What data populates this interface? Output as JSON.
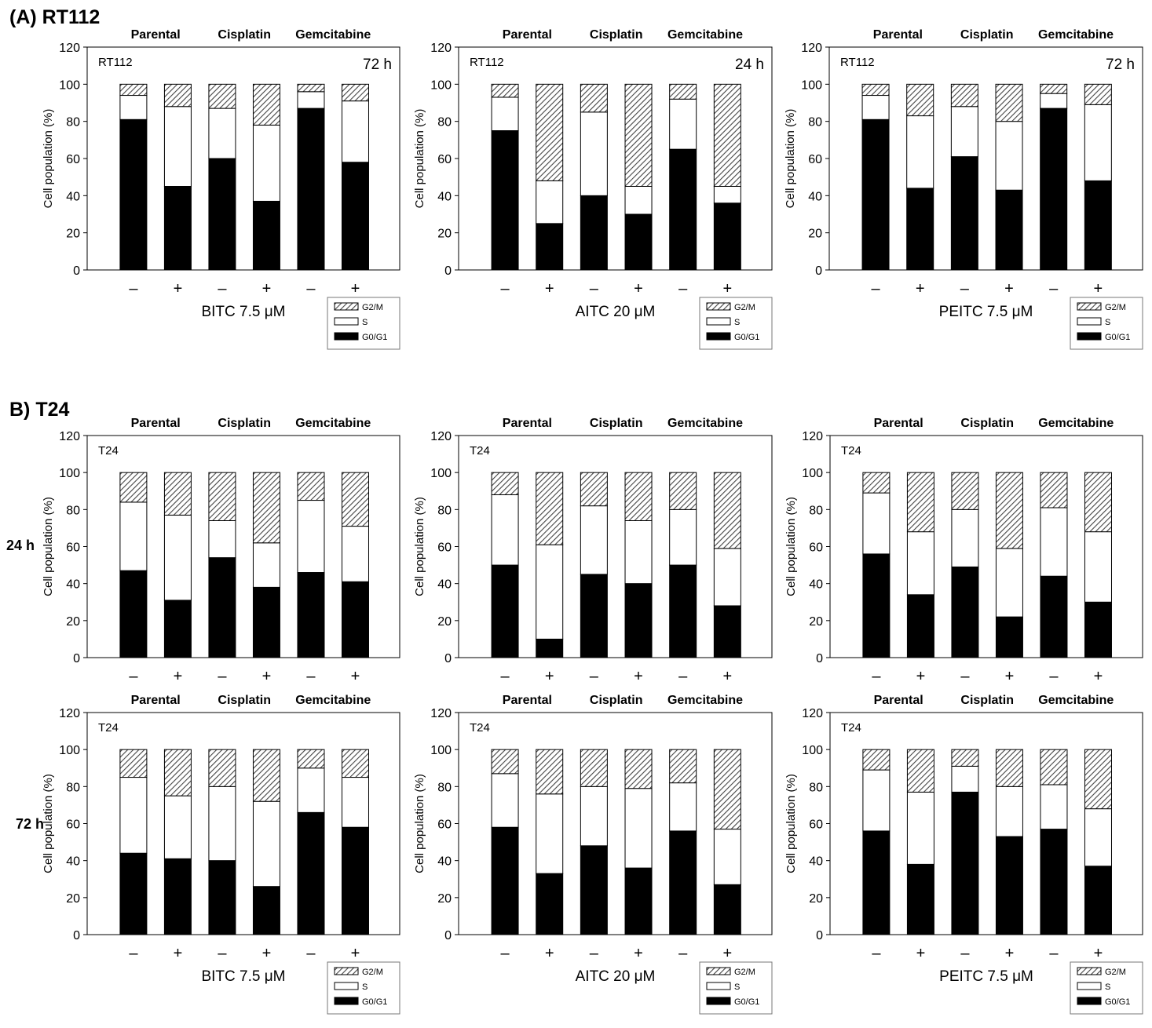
{
  "sections": {
    "a": "(A) RT112",
    "b": "B) T24"
  },
  "row_labels": {
    "r24": "24  h",
    "r72": "72 h"
  },
  "colors": {
    "g0g1": "#000000",
    "s": "#ffffff",
    "g2m_hatch": "#555555",
    "axis": "#000000"
  },
  "legend": {
    "g2m": "G2/M",
    "s": "S",
    "g0g1": "G0/G1"
  },
  "chart_data": [
    {
      "id": "a1",
      "type": "bar",
      "stacked": true,
      "group_labels": [
        "Parental",
        "Cisplatin",
        "Gemcitabine"
      ],
      "categories": [
        "–",
        "+",
        "–",
        "+",
        "–",
        "+"
      ],
      "panel_label": "RT112",
      "time": "72 h",
      "ylabel": "Cell population (%)",
      "yticks": [
        0,
        20,
        40,
        60,
        80,
        100,
        120
      ],
      "ylim": [
        0,
        120
      ],
      "xlabel": "BITC 7.5 μM",
      "legend": true,
      "series": [
        {
          "name": "G0/G1",
          "values": [
            81,
            45,
            60,
            37,
            87,
            58
          ]
        },
        {
          "name": "S",
          "values": [
            13,
            43,
            27,
            41,
            9,
            33
          ]
        },
        {
          "name": "G2/M",
          "values": [
            6,
            12,
            13,
            22,
            4,
            9
          ]
        }
      ]
    },
    {
      "id": "a2",
      "type": "bar",
      "stacked": true,
      "group_labels": [
        "Parental",
        "Cisplatin",
        "Gemcitabine"
      ],
      "categories": [
        "–",
        "+",
        "–",
        "+",
        "–",
        "+"
      ],
      "panel_label": "RT112",
      "time": "24 h",
      "ylabel": "Cell population (%)",
      "yticks": [
        0,
        20,
        40,
        60,
        80,
        100,
        120
      ],
      "ylim": [
        0,
        120
      ],
      "xlabel": "AITC 20 μM",
      "legend": true,
      "series": [
        {
          "name": "G0/G1",
          "values": [
            75,
            25,
            40,
            30,
            65,
            36
          ]
        },
        {
          "name": "S",
          "values": [
            18,
            23,
            45,
            15,
            27,
            9
          ]
        },
        {
          "name": "G2/M",
          "values": [
            7,
            52,
            15,
            55,
            8,
            55
          ]
        }
      ]
    },
    {
      "id": "a3",
      "type": "bar",
      "stacked": true,
      "group_labels": [
        "Parental",
        "Cisplatin",
        "Gemcitabine"
      ],
      "categories": [
        "–",
        "+",
        "–",
        "+",
        "–",
        "+"
      ],
      "panel_label": "RT112",
      "time": "72 h",
      "ylabel": "Cell population (%)",
      "yticks": [
        0,
        20,
        40,
        60,
        80,
        100,
        120
      ],
      "ylim": [
        0,
        120
      ],
      "xlabel": "PEITC 7.5 μM",
      "legend": true,
      "series": [
        {
          "name": "G0/G1",
          "values": [
            81,
            44,
            61,
            43,
            87,
            48
          ]
        },
        {
          "name": "S",
          "values": [
            13,
            39,
            27,
            37,
            8,
            41
          ]
        },
        {
          "name": "G2/M",
          "values": [
            6,
            17,
            12,
            20,
            5,
            11
          ]
        }
      ]
    },
    {
      "id": "b1",
      "type": "bar",
      "stacked": true,
      "group_labels": [
        "Parental",
        "Cisplatin",
        "Gemcitabine"
      ],
      "categories": [
        "–",
        "+",
        "–",
        "+",
        "–",
        "+"
      ],
      "panel_label": "T24",
      "time": "",
      "ylabel": "Cell population (%)",
      "yticks": [
        0,
        20,
        40,
        60,
        80,
        100,
        120
      ],
      "ylim": [
        0,
        120
      ],
      "xlabel": "",
      "legend": false,
      "series": [
        {
          "name": "G0/G1",
          "values": [
            47,
            31,
            54,
            38,
            46,
            41
          ]
        },
        {
          "name": "S",
          "values": [
            37,
            46,
            20,
            24,
            39,
            30
          ]
        },
        {
          "name": "G2/M",
          "values": [
            16,
            23,
            26,
            38,
            15,
            29
          ]
        }
      ]
    },
    {
      "id": "b2",
      "type": "bar",
      "stacked": true,
      "group_labels": [
        "Parental",
        "Cisplatin",
        "Gemcitabine"
      ],
      "categories": [
        "–",
        "+",
        "–",
        "+",
        "–",
        "+"
      ],
      "panel_label": "T24",
      "time": "",
      "ylabel": "Cell population (%)",
      "yticks": [
        0,
        20,
        40,
        60,
        80,
        100,
        120
      ],
      "ylim": [
        0,
        120
      ],
      "xlabel": "",
      "legend": false,
      "series": [
        {
          "name": "G0/G1",
          "values": [
            50,
            10,
            45,
            40,
            50,
            28
          ]
        },
        {
          "name": "S",
          "values": [
            38,
            51,
            37,
            34,
            30,
            31
          ]
        },
        {
          "name": "G2/M",
          "values": [
            12,
            39,
            18,
            26,
            20,
            41
          ]
        }
      ]
    },
    {
      "id": "b3",
      "type": "bar",
      "stacked": true,
      "group_labels": [
        "Parental",
        "Cisplatin",
        "Gemcitabine"
      ],
      "categories": [
        "–",
        "+",
        "–",
        "+",
        "–",
        "+"
      ],
      "panel_label": "T24",
      "time": "",
      "ylabel": "Cell population (%)",
      "yticks": [
        0,
        20,
        40,
        60,
        80,
        100,
        120
      ],
      "ylim": [
        0,
        120
      ],
      "xlabel": "",
      "legend": false,
      "series": [
        {
          "name": "G0/G1",
          "values": [
            56,
            34,
            49,
            22,
            44,
            30
          ]
        },
        {
          "name": "S",
          "values": [
            33,
            34,
            31,
            37,
            37,
            38
          ]
        },
        {
          "name": "G2/M",
          "values": [
            11,
            32,
            20,
            41,
            19,
            32
          ]
        }
      ]
    },
    {
      "id": "c1",
      "type": "bar",
      "stacked": true,
      "group_labels": [
        "Parental",
        "Cisplatin",
        "Gemcitabine"
      ],
      "categories": [
        "–",
        "+",
        "–",
        "+",
        "–",
        "+"
      ],
      "panel_label": "T24",
      "time": "",
      "ylabel": "Cell population (%)",
      "yticks": [
        0,
        20,
        40,
        60,
        80,
        100,
        120
      ],
      "ylim": [
        0,
        120
      ],
      "xlabel": "BITC 7.5 μM",
      "legend": true,
      "series": [
        {
          "name": "G0/G1",
          "values": [
            44,
            41,
            40,
            26,
            66,
            58
          ]
        },
        {
          "name": "S",
          "values": [
            41,
            34,
            40,
            46,
            24,
            27
          ]
        },
        {
          "name": "G2/M",
          "values": [
            15,
            25,
            20,
            28,
            10,
            15
          ]
        }
      ]
    },
    {
      "id": "c2",
      "type": "bar",
      "stacked": true,
      "group_labels": [
        "Parental",
        "Cisplatin",
        "Gemcitabine"
      ],
      "categories": [
        "–",
        "+",
        "–",
        "+",
        "–",
        "+"
      ],
      "panel_label": "T24",
      "time": "",
      "ylabel": "Cell population (%)",
      "yticks": [
        0,
        20,
        40,
        60,
        80,
        100,
        120
      ],
      "ylim": [
        0,
        120
      ],
      "xlabel": "AITC 20 μM",
      "legend": true,
      "series": [
        {
          "name": "G0/G1",
          "values": [
            58,
            33,
            48,
            36,
            56,
            27
          ]
        },
        {
          "name": "S",
          "values": [
            29,
            43,
            32,
            43,
            26,
            30
          ]
        },
        {
          "name": "G2/M",
          "values": [
            13,
            24,
            20,
            21,
            18,
            43
          ]
        }
      ]
    },
    {
      "id": "c3",
      "type": "bar",
      "stacked": true,
      "group_labels": [
        "Parental",
        "Cisplatin",
        "Gemcitabine"
      ],
      "categories": [
        "–",
        "+",
        "–",
        "+",
        "–",
        "+"
      ],
      "panel_label": "T24",
      "time": "",
      "ylabel": "Cell population (%)",
      "yticks": [
        0,
        20,
        40,
        60,
        80,
        100,
        120
      ],
      "ylim": [
        0,
        120
      ],
      "xlabel": "PEITC 7.5 μM",
      "legend": true,
      "series": [
        {
          "name": "G0/G1",
          "values": [
            56,
            38,
            77,
            53,
            57,
            37
          ]
        },
        {
          "name": "S",
          "values": [
            33,
            39,
            14,
            27,
            24,
            31
          ]
        },
        {
          "name": "G2/M",
          "values": [
            11,
            23,
            9,
            20,
            19,
            32
          ]
        }
      ]
    }
  ]
}
